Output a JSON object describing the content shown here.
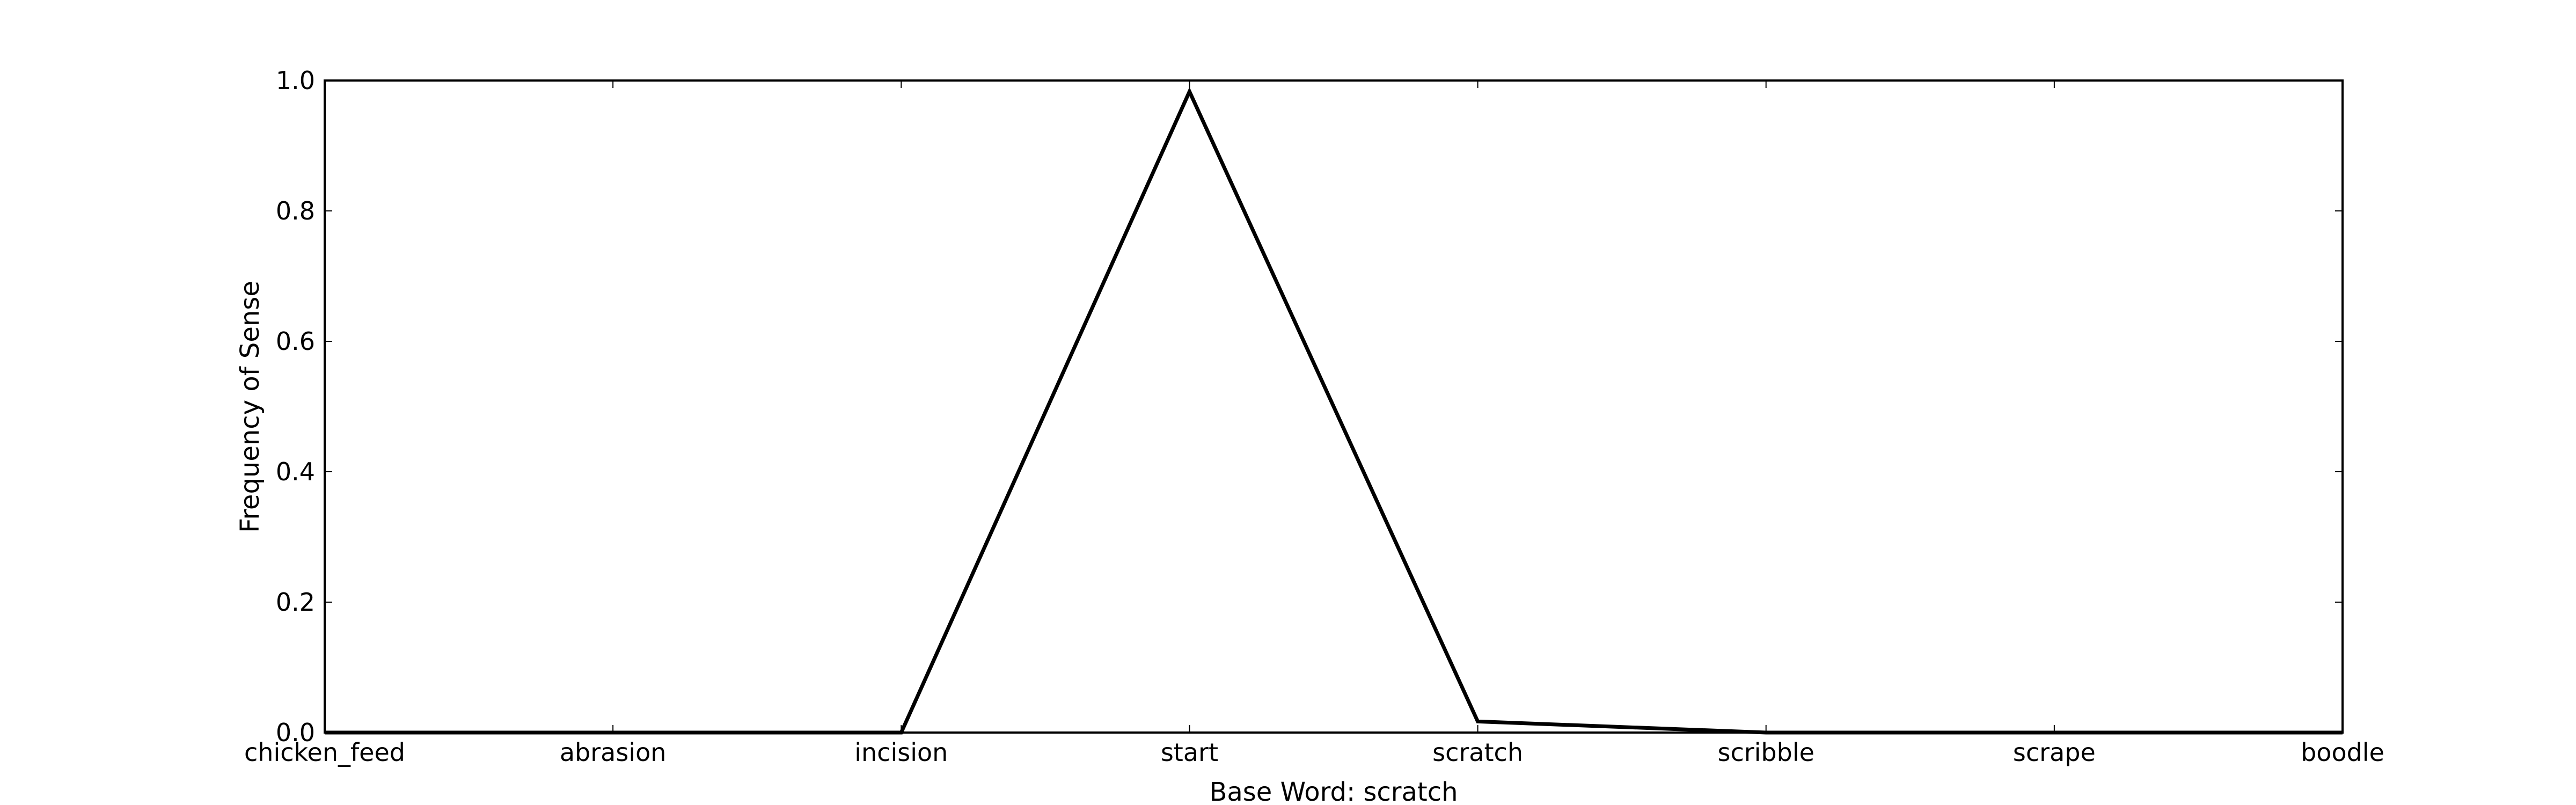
{
  "chart_data": {
    "type": "line",
    "categories": [
      "chicken_feed",
      "abrasion",
      "incision",
      "start",
      "scratch",
      "scribble",
      "scrape",
      "boodle"
    ],
    "series": [
      {
        "values": [
          0.0,
          0.0,
          0.0,
          0.983,
          0.017,
          0.0,
          0.0,
          0.0
        ],
        "color": "#000000"
      }
    ],
    "xlabel": "Base Word: scratch",
    "ylabel": "Frequency of Sense",
    "ylim": [
      0.0,
      1.0
    ],
    "yticks": [
      "0.0",
      "0.2",
      "0.4",
      "0.6",
      "0.8",
      "1.0"
    ],
    "grid": false
  }
}
